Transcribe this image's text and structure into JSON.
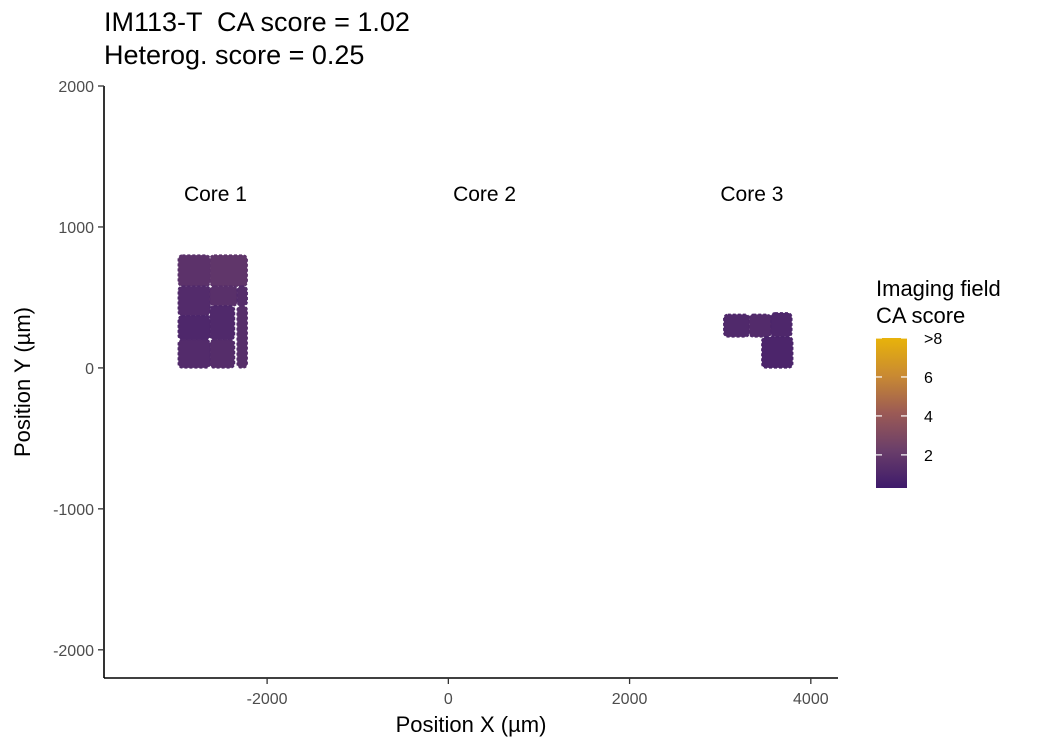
{
  "chart_data": {
    "type": "scatter",
    "title": "IM113-T  CA score = 1.02",
    "subtitle": "Heterog. score = 0.25",
    "xlabel": "Position X (µm)",
    "ylabel": "Position Y (µm)",
    "xlim": [
      -3800,
      4300
    ],
    "ylim": [
      -2200,
      2000
    ],
    "x_ticks": [
      -2000,
      0,
      2000,
      4000
    ],
    "x_tick_labels": [
      "-2000",
      "0",
      "2000",
      "4000"
    ],
    "y_ticks": [
      -2000,
      -1000,
      0,
      1000,
      2000
    ],
    "y_tick_labels": [
      "-2000",
      "-1000",
      "0",
      "1000",
      "2000"
    ],
    "grid": false,
    "annotations": [
      {
        "text": "Core 1",
        "x": -2570,
        "y": 1240
      },
      {
        "text": "Core 2",
        "x": 400,
        "y": 1240
      },
      {
        "text": "Core 3",
        "x": 3350,
        "y": 1240
      }
    ],
    "fields": [
      {
        "x0": -2980,
        "x1": -2630,
        "y0": 580,
        "y1": 800,
        "score": 1.6
      },
      {
        "x0": -2630,
        "x1": -2220,
        "y0": 580,
        "y1": 800,
        "score": 1.8
      },
      {
        "x0": -2980,
        "x1": -2630,
        "y0": 370,
        "y1": 580,
        "score": 1.2
      },
      {
        "x0": -2630,
        "x1": -2330,
        "y0": 440,
        "y1": 580,
        "score": 1.5
      },
      {
        "x0": -2330,
        "x1": -2220,
        "y0": 440,
        "y1": 580,
        "score": 1.3
      },
      {
        "x0": -2980,
        "x1": -2630,
        "y0": 200,
        "y1": 370,
        "score": 1.0
      },
      {
        "x0": -2630,
        "x1": -2360,
        "y0": 200,
        "y1": 440,
        "score": 1.1
      },
      {
        "x0": -2980,
        "x1": -2630,
        "y0": 0,
        "y1": 200,
        "score": 1.2
      },
      {
        "x0": -2630,
        "x1": -2360,
        "y0": 0,
        "y1": 200,
        "score": 1.3
      },
      {
        "x0": -2330,
        "x1": -2220,
        "y0": 0,
        "y1": 440,
        "score": 1.4
      },
      {
        "x0": 3040,
        "x1": 3320,
        "y0": 220,
        "y1": 380,
        "score": 1.1
      },
      {
        "x0": 3320,
        "x1": 3560,
        "y0": 220,
        "y1": 380,
        "score": 1.2
      },
      {
        "x0": 3560,
        "x1": 3790,
        "y0": 220,
        "y1": 390,
        "score": 1.0
      },
      {
        "x0": 3460,
        "x1": 3800,
        "y0": 0,
        "y1": 220,
        "score": 0.9
      }
    ],
    "legend": {
      "title_line1": "Imaging field",
      "title_line2": "CA score",
      "ticks": [
        {
          "value": 2,
          "label": "2"
        },
        {
          "value": 4,
          "label": "4"
        },
        {
          "value": 6,
          "label": "6"
        },
        {
          "value": 8,
          "label": ">8"
        }
      ],
      "range": [
        0.3,
        8
      ],
      "colors": [
        "#3e1a6b",
        "#6a3e6a",
        "#9b5a55",
        "#c98a32",
        "#e8b30a"
      ]
    }
  }
}
